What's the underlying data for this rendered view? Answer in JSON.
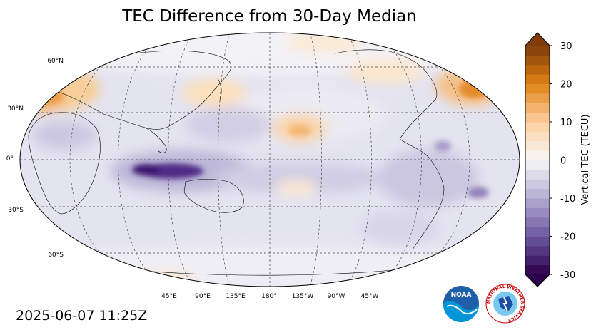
{
  "title": "TEC Difference from 30-Day Median",
  "timestamp": "2025-06-07 11:25Z",
  "map": {
    "projection": "robinson",
    "central_longitude": 180,
    "lat_labels": [
      "60°N",
      "30°N",
      "0°",
      "30°S",
      "60°S"
    ],
    "lon_labels": [
      "45°E",
      "90°E",
      "135°E",
      "180°",
      "135°W",
      "90°W",
      "45°W"
    ],
    "gridlines": true,
    "coastlines": true,
    "features": [
      {
        "name": "Maritime continent / Indian Ocean depletion",
        "value": -28
      },
      {
        "name": "Equatorial Pacific depletion",
        "value": -12
      },
      {
        "name": "South American sector depletion",
        "value": -14
      },
      {
        "name": "Europe / Middle East enhancement",
        "value": 14
      },
      {
        "name": "East Asia / Japan enhancement",
        "value": 10
      },
      {
        "name": "Central Pacific enhancement",
        "value": 9
      },
      {
        "name": "North Atlantic enhancement",
        "value": 18
      },
      {
        "name": "Southern Ocean enhancement",
        "value": 5
      }
    ]
  },
  "colorbar": {
    "label": "Vertical TEC (TECU)",
    "min": -30,
    "max": 30,
    "ticks": [
      "30",
      "20",
      "10",
      "0",
      "-10",
      "-20",
      "-30"
    ],
    "extend": "both",
    "colormap": "PuOr_r",
    "colors": {
      "negative_end": "#2d004b",
      "center": "#f7f7f7",
      "positive_end": "#7f3b08"
    }
  },
  "logos": {
    "noaa_text": "NOAA",
    "nws_text": "NATIONAL WEATHER SERVICE"
  }
}
